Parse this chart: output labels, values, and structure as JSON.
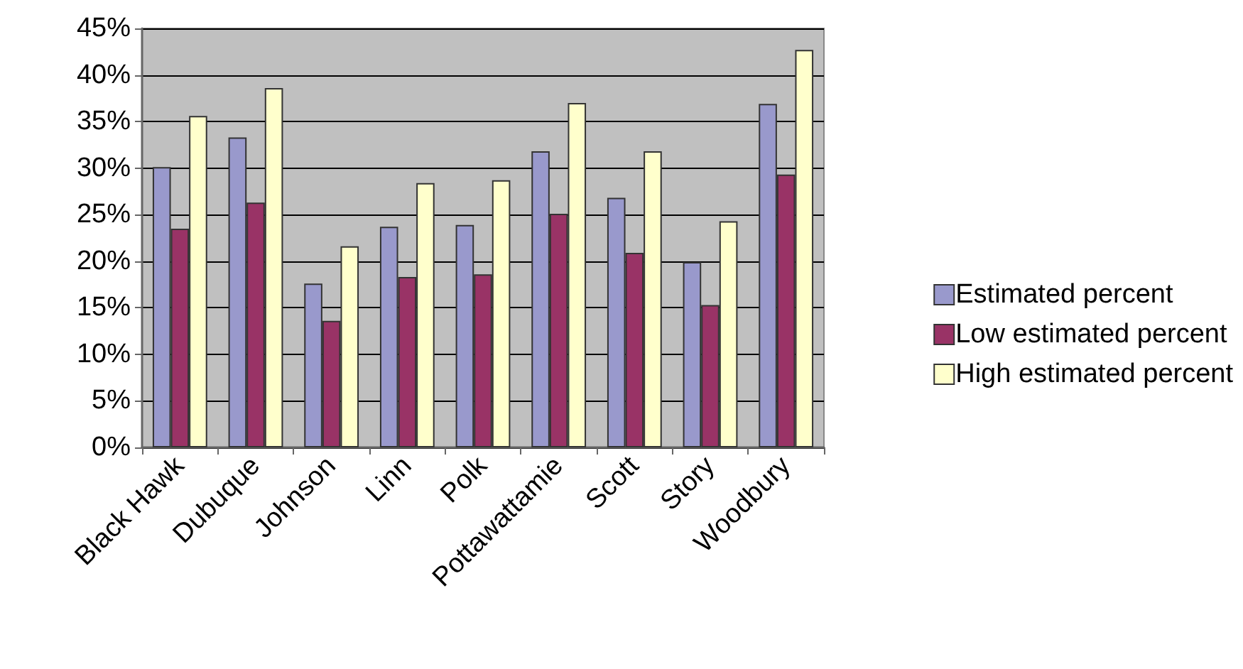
{
  "chart_data": {
    "type": "bar",
    "categories": [
      "Black Hawk",
      "Dubuque",
      "Johnson",
      "Linn",
      "Polk",
      "Pottawattamie",
      "Scott",
      "Story",
      "Woodbury"
    ],
    "series": [
      {
        "name": "Estimated percent",
        "color": "#9999cc",
        "values": [
          30.1,
          33.3,
          17.6,
          23.7,
          23.9,
          31.8,
          26.8,
          19.9,
          36.9
        ]
      },
      {
        "name": "Low estimated percent",
        "color": "#993366",
        "values": [
          23.5,
          26.3,
          13.6,
          18.3,
          18.6,
          25.1,
          20.9,
          15.3,
          29.3
        ]
      },
      {
        "name": "High estimated percent",
        "color": "#ffffcc",
        "values": [
          35.6,
          38.6,
          21.6,
          28.4,
          28.7,
          37.0,
          31.8,
          24.3,
          42.7
        ]
      }
    ],
    "ylim": [
      0,
      45
    ],
    "yticks": [
      {
        "value": 0,
        "label": "0%"
      },
      {
        "value": 5,
        "label": "5%"
      },
      {
        "value": 10,
        "label": "10%"
      },
      {
        "value": 15,
        "label": "15%"
      },
      {
        "value": 20,
        "label": "20%"
      },
      {
        "value": 25,
        "label": "25%"
      },
      {
        "value": 30,
        "label": "30%"
      },
      {
        "value": 35,
        "label": "35%"
      },
      {
        "value": 40,
        "label": "40%"
      },
      {
        "value": 45,
        "label": "45%"
      }
    ],
    "grid": "y",
    "legend": "right"
  }
}
